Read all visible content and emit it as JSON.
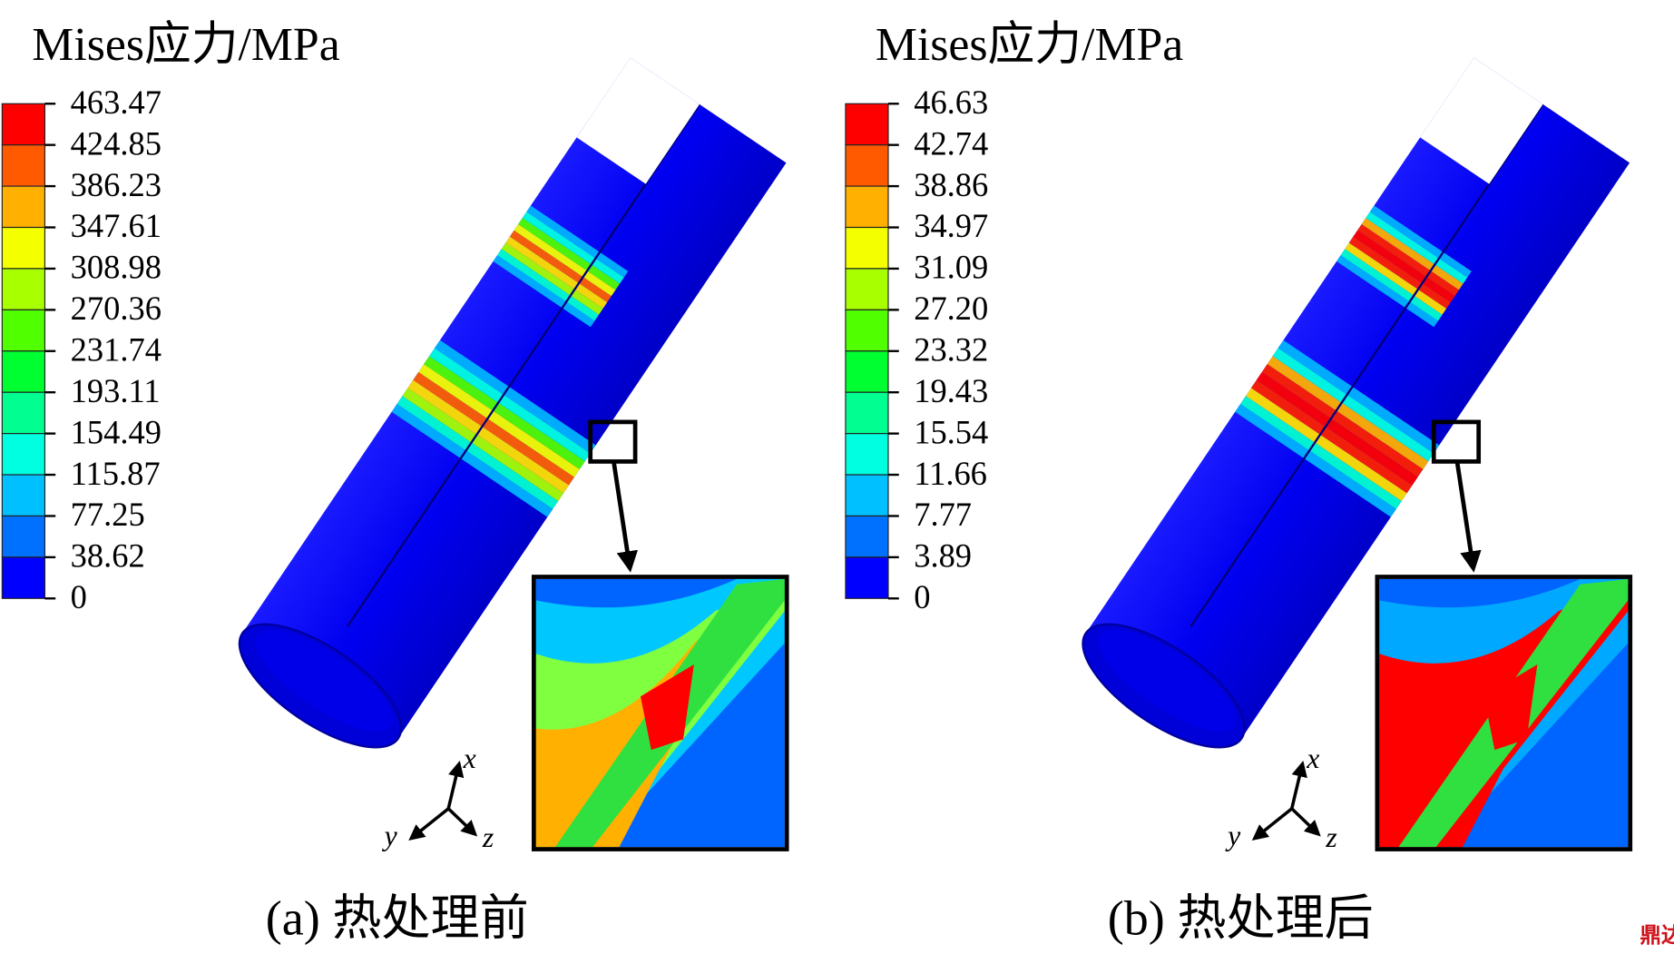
{
  "panels": [
    {
      "title": "Mises应力/MPa",
      "legend": [
        "463.47",
        "424.85",
        "386.23",
        "347.61",
        "308.98",
        "270.36",
        "231.74",
        "193.11",
        "154.49",
        "115.87",
        "77.25",
        "38.62",
        "0"
      ],
      "axes": {
        "x": "x",
        "y": "y",
        "z": "z"
      },
      "caption": "(a) 热处理前"
    },
    {
      "title": "Mises应力/MPa",
      "legend": [
        "46.63",
        "42.74",
        "38.86",
        "34.97",
        "31.09",
        "27.20",
        "23.32",
        "19.43",
        "15.54",
        "11.66",
        "7.77",
        "3.89",
        "0"
      ],
      "axes": {
        "x": "x",
        "y": "y",
        "z": "z"
      },
      "caption": "(b) 热处理后"
    }
  ],
  "watermark": "鼎达信"
}
